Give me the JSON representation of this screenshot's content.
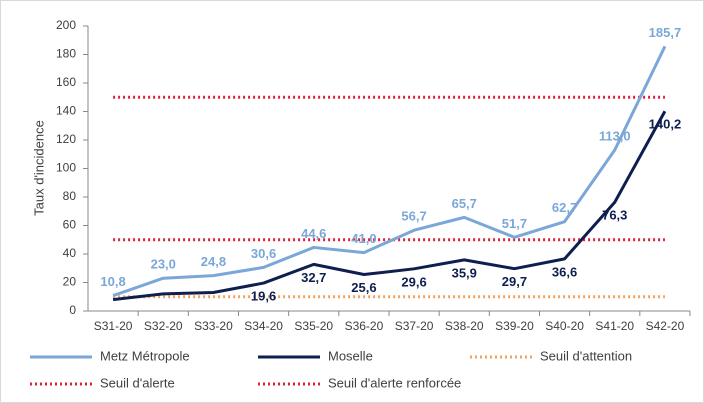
{
  "chart_data": {
    "type": "line",
    "y_label": "Taux d'incidence",
    "categories": [
      "S31-20",
      "S32-20",
      "S33-20",
      "S34-20",
      "S35-20",
      "S36-20",
      "S37-20",
      "S38-20",
      "S39-20",
      "S40-20",
      "S41-20",
      "S42-20"
    ],
    "series": [
      {
        "name": "Metz Métropole",
        "color": "#7aa7d8",
        "style": "solid",
        "values": [
          10.8,
          23.0,
          24.8,
          30.6,
          44.6,
          41.0,
          56.7,
          65.7,
          51.7,
          62.7,
          113.0,
          185.7
        ],
        "value_labels": [
          "10,8",
          "23,0",
          "24,8",
          "30,6",
          "44,6",
          "41,0",
          "56,7",
          "65,7",
          "51,7",
          "62,7",
          "113,0",
          "185,7"
        ]
      },
      {
        "name": "Moselle",
        "color": "#0e1f4f",
        "style": "solid",
        "values": [
          8,
          12,
          13,
          19.6,
          32.7,
          25.6,
          29.6,
          35.9,
          29.7,
          36.6,
          76.3,
          140.2
        ],
        "value_labels": [
          null,
          null,
          null,
          "19,6",
          "32,7",
          "25,6",
          "29,6",
          "35,9",
          "29,7",
          "36,6",
          "76,3",
          "140,2"
        ]
      },
      {
        "name": "Seuil d'attention",
        "color": "#f3a15c",
        "style": "dotted",
        "values": [
          10,
          10,
          10,
          10,
          10,
          10,
          10,
          10,
          10,
          10,
          10,
          10
        ]
      },
      {
        "name": "Seuil d'alerte",
        "color": "#e0203a",
        "style": "dotted",
        "values": [
          50,
          50,
          50,
          50,
          50,
          50,
          50,
          50,
          50,
          50,
          50,
          50
        ]
      },
      {
        "name": "Seuil d'alerte renforcée",
        "color": "#e0203a",
        "style": "dotted",
        "values": [
          150,
          150,
          150,
          150,
          150,
          150,
          150,
          150,
          150,
          150,
          150,
          150
        ]
      }
    ],
    "ylim": [
      0,
      200
    ],
    "yticks": [
      0,
      20,
      40,
      60,
      80,
      100,
      120,
      140,
      160,
      180,
      200
    ],
    "legend": "bottom"
  }
}
